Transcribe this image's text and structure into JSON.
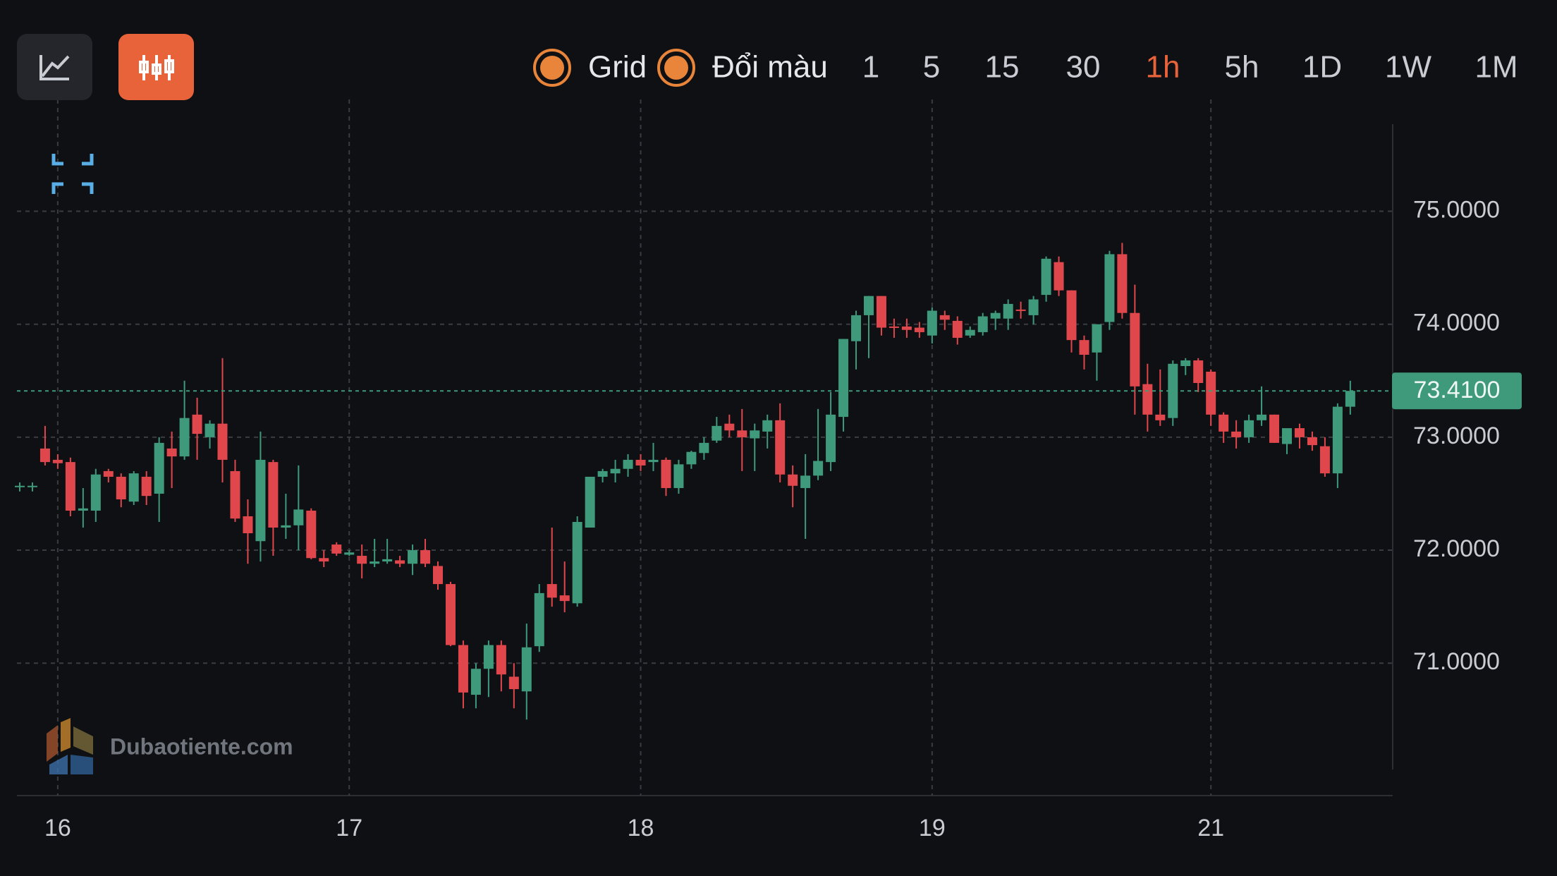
{
  "toolbar": {
    "options": [
      "Grid",
      "Đổi màu"
    ],
    "intervals": [
      "1",
      "5",
      "15",
      "30",
      "1h",
      "5h",
      "1D",
      "1W",
      "1M"
    ],
    "active_interval": "1h"
  },
  "watermark": "Dubaotiente.com",
  "chart_data": {
    "type": "candlestick",
    "categories": [
      null,
      null,
      null,
      "16",
      null,
      null,
      null,
      null,
      null,
      null,
      null,
      null,
      null,
      null,
      null,
      null,
      null,
      null,
      null,
      null,
      null,
      null,
      null,
      null,
      null,
      null,
      "17",
      null,
      null,
      null,
      null,
      null,
      null,
      null,
      null,
      null,
      null,
      null,
      null,
      null,
      null,
      null,
      null,
      null,
      null,
      null,
      null,
      null,
      null,
      "18",
      null,
      null,
      null,
      null,
      null,
      null,
      null,
      null,
      null,
      null,
      null,
      null,
      null,
      null,
      null,
      null,
      null,
      null,
      null,
      null,
      null,
      null,
      "19",
      null,
      null,
      null,
      null,
      null,
      null,
      null,
      null,
      null,
      null,
      null,
      null,
      null,
      null,
      null,
      null,
      null,
      null,
      null,
      null,
      null,
      "21",
      null,
      null,
      null,
      null,
      null,
      null,
      null,
      null,
      null,
      null,
      null
    ],
    "open": [
      72.57,
      72.57,
      72.9,
      72.8,
      72.78,
      72.35,
      72.35,
      72.7,
      72.65,
      72.43,
      72.65,
      72.5,
      72.9,
      72.83,
      73.2,
      73.0,
      73.12,
      72.7,
      72.3,
      72.08,
      72.78,
      72.2,
      72.22,
      72.35,
      71.93,
      72.05,
      71.96,
      71.95,
      71.88,
      71.9,
      71.91,
      71.88,
      72.0,
      71.86,
      71.7,
      71.16,
      70.72,
      70.95,
      71.16,
      70.88,
      70.75,
      71.15,
      71.7,
      71.6,
      71.53,
      72.2,
      72.65,
      72.68,
      72.72,
      72.8,
      72.78,
      72.8,
      72.55,
      72.76,
      72.86,
      72.97,
      73.12,
      73.06,
      72.99,
      73.05,
      73.15,
      72.67,
      72.55,
      72.66,
      72.78,
      73.18,
      73.85,
      74.08,
      74.25,
      73.98,
      73.98,
      73.97,
      73.9,
      74.08,
      74.03,
      73.9,
      73.93,
      74.05,
      74.05,
      74.13,
      74.08,
      74.26,
      74.55,
      74.3,
      73.86,
      73.75,
      74.02,
      74.62,
      74.1,
      73.47,
      73.2,
      73.17,
      73.63,
      73.68,
      73.58,
      73.2,
      73.05,
      73.0,
      73.15,
      73.2,
      72.94,
      73.08,
      73.0,
      72.92,
      72.68,
      73.27
    ],
    "high": [
      72.6,
      72.6,
      73.1,
      72.85,
      72.82,
      72.55,
      72.72,
      72.72,
      72.68,
      72.7,
      72.7,
      73.0,
      73.05,
      73.5,
      73.35,
      73.15,
      73.7,
      72.8,
      72.45,
      73.05,
      72.8,
      72.5,
      72.75,
      72.37,
      72.0,
      72.07,
      72.0,
      72.05,
      72.1,
      72.1,
      71.95,
      72.05,
      72.1,
      71.9,
      71.72,
      71.2,
      71.0,
      71.2,
      71.2,
      71.0,
      71.35,
      71.7,
      72.2,
      71.9,
      72.3,
      72.65,
      72.72,
      72.8,
      72.85,
      72.85,
      72.95,
      72.82,
      72.8,
      72.88,
      73.0,
      73.18,
      73.2,
      73.25,
      73.12,
      73.2,
      73.3,
      72.75,
      72.85,
      73.25,
      73.4,
      73.87,
      74.12,
      74.25,
      74.25,
      74.05,
      74.05,
      74.02,
      74.15,
      74.12,
      74.07,
      73.98,
      74.1,
      74.12,
      74.22,
      74.2,
      74.25,
      74.6,
      74.6,
      74.3,
      73.9,
      74.0,
      74.65,
      74.72,
      74.35,
      73.65,
      73.6,
      73.68,
      73.7,
      73.7,
      73.6,
      73.22,
      73.15,
      73.2,
      73.45,
      73.2,
      73.05,
      73.12,
      73.05,
      73.0,
      73.3,
      73.5
    ],
    "low": [
      72.52,
      72.52,
      72.75,
      72.72,
      72.3,
      72.2,
      72.25,
      72.6,
      72.38,
      72.4,
      72.4,
      72.25,
      72.55,
      72.8,
      72.8,
      72.9,
      72.6,
      72.25,
      71.88,
      71.9,
      71.95,
      72.1,
      72.0,
      71.92,
      71.85,
      71.95,
      71.95,
      71.75,
      71.85,
      71.88,
      71.85,
      71.78,
      71.85,
      71.65,
      71.15,
      70.6,
      70.6,
      70.7,
      70.75,
      70.6,
      70.5,
      71.1,
      71.5,
      71.45,
      71.5,
      72.2,
      72.6,
      72.6,
      72.65,
      72.7,
      72.7,
      72.48,
      72.5,
      72.72,
      72.8,
      72.95,
      73.0,
      72.7,
      72.7,
      72.9,
      72.6,
      72.38,
      72.1,
      72.62,
      72.7,
      73.05,
      73.6,
      73.7,
      73.9,
      73.88,
      73.88,
      73.88,
      73.83,
      73.95,
      73.82,
      73.88,
      73.9,
      73.95,
      73.95,
      74.05,
      74.0,
      74.2,
      74.25,
      73.75,
      73.6,
      73.5,
      73.95,
      74.05,
      73.2,
      73.05,
      73.1,
      73.1,
      73.55,
      73.4,
      73.1,
      72.95,
      72.9,
      72.95,
      73.1,
      72.95,
      72.85,
      72.9,
      72.88,
      72.65,
      72.55,
      73.2
    ],
    "close": [
      72.57,
      72.57,
      72.78,
      72.77,
      72.35,
      72.37,
      72.67,
      72.65,
      72.45,
      72.68,
      72.48,
      72.95,
      72.83,
      73.17,
      73.03,
      73.12,
      72.8,
      72.28,
      72.15,
      72.8,
      72.2,
      72.22,
      72.36,
      71.93,
      71.9,
      71.97,
      71.98,
      71.88,
      71.9,
      71.92,
      71.88,
      72.0,
      71.88,
      71.7,
      71.16,
      70.74,
      70.95,
      71.16,
      70.9,
      70.77,
      71.14,
      71.62,
      71.58,
      71.55,
      72.25,
      72.65,
      72.7,
      72.72,
      72.8,
      72.75,
      72.8,
      72.55,
      72.76,
      72.87,
      72.95,
      73.1,
      73.06,
      73.0,
      73.06,
      73.15,
      72.67,
      72.57,
      72.66,
      72.79,
      73.2,
      73.87,
      74.08,
      74.25,
      73.97,
      73.97,
      73.95,
      73.93,
      74.12,
      74.04,
      73.88,
      73.95,
      74.07,
      74.1,
      74.18,
      74.12,
      74.22,
      74.58,
      74.3,
      73.86,
      73.73,
      74.0,
      74.62,
      74.1,
      73.45,
      73.2,
      73.15,
      73.65,
      73.68,
      73.48,
      73.2,
      73.05,
      73.0,
      73.15,
      73.2,
      72.95,
      73.08,
      73.0,
      72.93,
      72.68,
      73.27,
      73.41
    ],
    "up_color": "#3f9a7b",
    "down_color": "#e0474c",
    "ylim": [
      69.84,
      75.99
    ],
    "yticks": [
      {
        "value": 71,
        "label": "71.0000"
      },
      {
        "value": 72,
        "label": "72.0000"
      },
      {
        "value": 73,
        "label": "73.0000"
      },
      {
        "value": 74,
        "label": "74.0000"
      },
      {
        "value": 75,
        "label": "75.0000"
      }
    ],
    "grid": true,
    "last_price": {
      "value": 73.41,
      "label": "73.4100"
    }
  }
}
